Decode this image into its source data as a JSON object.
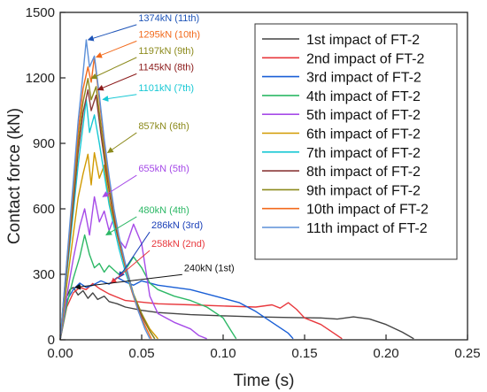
{
  "chart_data": {
    "type": "line",
    "title": "",
    "xlabel": "Time (s)",
    "ylabel": "Contact force (kN)",
    "xlim": [
      0,
      0.25
    ],
    "ylim": [
      0,
      1500
    ],
    "xticks": [
      "0.00",
      "0.05",
      "0.10",
      "0.15",
      "0.20",
      "0.25"
    ],
    "yticks": [
      "0",
      "300",
      "600",
      "900",
      "1200",
      "1500"
    ],
    "legend_position": "top-right",
    "grid": false,
    "series": [
      {
        "name": "1st impact of FT-2",
        "color": "#444444",
        "points": [
          [
            0,
            0
          ],
          [
            0.003,
            180
          ],
          [
            0.006,
            230
          ],
          [
            0.008,
            240
          ],
          [
            0.011,
            205
          ],
          [
            0.014,
            225
          ],
          [
            0.017,
            190
          ],
          [
            0.02,
            215
          ],
          [
            0.023,
            185
          ],
          [
            0.027,
            200
          ],
          [
            0.03,
            175
          ],
          [
            0.035,
            165
          ],
          [
            0.04,
            150
          ],
          [
            0.05,
            135
          ],
          [
            0.06,
            125
          ],
          [
            0.08,
            115
          ],
          [
            0.1,
            110
          ],
          [
            0.12,
            105
          ],
          [
            0.14,
            102
          ],
          [
            0.16,
            100
          ],
          [
            0.17,
            95
          ],
          [
            0.18,
            105
          ],
          [
            0.19,
            95
          ],
          [
            0.2,
            70
          ],
          [
            0.21,
            35
          ],
          [
            0.217,
            5
          ]
        ]
      },
      {
        "name": "2nd impact of FT-2",
        "color": "#e8383d",
        "points": [
          [
            0,
            0
          ],
          [
            0.004,
            150
          ],
          [
            0.008,
            215
          ],
          [
            0.012,
            240
          ],
          [
            0.016,
            230
          ],
          [
            0.02,
            258
          ],
          [
            0.024,
            235
          ],
          [
            0.03,
            210
          ],
          [
            0.04,
            180
          ],
          [
            0.06,
            165
          ],
          [
            0.08,
            160
          ],
          [
            0.1,
            155
          ],
          [
            0.12,
            150
          ],
          [
            0.13,
            160
          ],
          [
            0.135,
            145
          ],
          [
            0.14,
            170
          ],
          [
            0.145,
            140
          ],
          [
            0.15,
            100
          ],
          [
            0.16,
            70
          ],
          [
            0.168,
            30
          ],
          [
            0.173,
            5
          ]
        ]
      },
      {
        "name": "3rd impact of FT-2",
        "color": "#1a5fd6",
        "points": [
          [
            0,
            0
          ],
          [
            0.004,
            180
          ],
          [
            0.008,
            230
          ],
          [
            0.012,
            260
          ],
          [
            0.016,
            240
          ],
          [
            0.02,
            250
          ],
          [
            0.025,
            270
          ],
          [
            0.03,
            255
          ],
          [
            0.035,
            286
          ],
          [
            0.04,
            265
          ],
          [
            0.045,
            250
          ],
          [
            0.05,
            270
          ],
          [
            0.06,
            250
          ],
          [
            0.07,
            240
          ],
          [
            0.08,
            230
          ],
          [
            0.09,
            210
          ],
          [
            0.1,
            190
          ],
          [
            0.11,
            170
          ],
          [
            0.12,
            130
          ],
          [
            0.13,
            80
          ],
          [
            0.14,
            30
          ],
          [
            0.143,
            5
          ]
        ]
      },
      {
        "name": "4th impact of FT-2",
        "color": "#2db866",
        "points": [
          [
            0,
            0
          ],
          [
            0.004,
            160
          ],
          [
            0.008,
            280
          ],
          [
            0.012,
            380
          ],
          [
            0.015,
            480
          ],
          [
            0.018,
            390
          ],
          [
            0.021,
            330
          ],
          [
            0.024,
            350
          ],
          [
            0.027,
            310
          ],
          [
            0.03,
            340
          ],
          [
            0.033,
            320
          ],
          [
            0.036,
            300
          ],
          [
            0.04,
            320
          ],
          [
            0.045,
            380
          ],
          [
            0.05,
            330
          ],
          [
            0.055,
            260
          ],
          [
            0.06,
            230
          ],
          [
            0.07,
            200
          ],
          [
            0.08,
            180
          ],
          [
            0.09,
            150
          ],
          [
            0.1,
            100
          ],
          [
            0.105,
            40
          ],
          [
            0.108,
            5
          ]
        ]
      },
      {
        "name": "5th impact of FT-2",
        "color": "#a64be8",
        "points": [
          [
            0,
            0
          ],
          [
            0.004,
            200
          ],
          [
            0.008,
            370
          ],
          [
            0.012,
            520
          ],
          [
            0.015,
            600
          ],
          [
            0.018,
            480
          ],
          [
            0.021,
            655
          ],
          [
            0.024,
            540
          ],
          [
            0.027,
            590
          ],
          [
            0.03,
            500
          ],
          [
            0.033,
            560
          ],
          [
            0.036,
            460
          ],
          [
            0.04,
            420
          ],
          [
            0.045,
            530
          ],
          [
            0.05,
            440
          ],
          [
            0.055,
            200
          ],
          [
            0.06,
            120
          ],
          [
            0.07,
            80
          ],
          [
            0.08,
            50
          ],
          [
            0.085,
            20
          ],
          [
            0.09,
            5
          ]
        ]
      },
      {
        "name": "6th impact of FT-2",
        "color": "#d19a00",
        "points": [
          [
            0,
            0
          ],
          [
            0.004,
            250
          ],
          [
            0.008,
            480
          ],
          [
            0.011,
            650
          ],
          [
            0.014,
            760
          ],
          [
            0.017,
            850
          ],
          [
            0.019,
            710
          ],
          [
            0.021,
            857
          ],
          [
            0.024,
            740
          ],
          [
            0.027,
            800
          ],
          [
            0.03,
            640
          ],
          [
            0.033,
            540
          ],
          [
            0.036,
            450
          ],
          [
            0.04,
            330
          ],
          [
            0.045,
            200
          ],
          [
            0.05,
            120
          ],
          [
            0.055,
            50
          ],
          [
            0.06,
            5
          ]
        ]
      },
      {
        "name": "7th impact of FT-2",
        "color": "#18c8d4",
        "points": [
          [
            0,
            0
          ],
          [
            0.004,
            300
          ],
          [
            0.008,
            580
          ],
          [
            0.011,
            800
          ],
          [
            0.014,
            980
          ],
          [
            0.016,
            1101
          ],
          [
            0.018,
            950
          ],
          [
            0.021,
            1030
          ],
          [
            0.024,
            900
          ],
          [
            0.027,
            760
          ],
          [
            0.03,
            620
          ],
          [
            0.033,
            520
          ],
          [
            0.036,
            420
          ],
          [
            0.04,
            310
          ],
          [
            0.045,
            200
          ],
          [
            0.05,
            110
          ],
          [
            0.055,
            40
          ],
          [
            0.058,
            5
          ]
        ]
      },
      {
        "name": "8th impact of FT-2",
        "color": "#8b3a3a",
        "points": [
          [
            0,
            0
          ],
          [
            0.004,
            320
          ],
          [
            0.008,
            620
          ],
          [
            0.011,
            860
          ],
          [
            0.014,
            1040
          ],
          [
            0.017,
            1145
          ],
          [
            0.019,
            1050
          ],
          [
            0.022,
            1120
          ],
          [
            0.025,
            940
          ],
          [
            0.028,
            780
          ],
          [
            0.031,
            640
          ],
          [
            0.034,
            520
          ],
          [
            0.037,
            420
          ],
          [
            0.041,
            310
          ],
          [
            0.045,
            200
          ],
          [
            0.05,
            110
          ],
          [
            0.055,
            40
          ],
          [
            0.058,
            5
          ]
        ]
      },
      {
        "name": "9th impact of FT-2",
        "color": "#8c8a1c",
        "points": [
          [
            0,
            0
          ],
          [
            0.004,
            340
          ],
          [
            0.008,
            660
          ],
          [
            0.011,
            900
          ],
          [
            0.014,
            1090
          ],
          [
            0.017,
            1197
          ],
          [
            0.019,
            1100
          ],
          [
            0.022,
            1160
          ],
          [
            0.025,
            980
          ],
          [
            0.028,
            810
          ],
          [
            0.031,
            660
          ],
          [
            0.034,
            540
          ],
          [
            0.037,
            430
          ],
          [
            0.041,
            320
          ],
          [
            0.045,
            210
          ],
          [
            0.05,
            120
          ],
          [
            0.055,
            40
          ],
          [
            0.058,
            5
          ]
        ]
      },
      {
        "name": "10th impact of FT-2",
        "color": "#f26a1c",
        "points": [
          [
            0,
            0
          ],
          [
            0.004,
            350
          ],
          [
            0.008,
            690
          ],
          [
            0.011,
            950
          ],
          [
            0.014,
            1150
          ],
          [
            0.017,
            1250
          ],
          [
            0.019,
            1180
          ],
          [
            0.021,
            1295
          ],
          [
            0.024,
            1100
          ],
          [
            0.027,
            900
          ],
          [
            0.03,
            730
          ],
          [
            0.033,
            590
          ],
          [
            0.036,
            470
          ],
          [
            0.04,
            340
          ],
          [
            0.044,
            220
          ],
          [
            0.048,
            130
          ],
          [
            0.053,
            50
          ],
          [
            0.056,
            5
          ]
        ]
      },
      {
        "name": "11th impact of FT-2",
        "color": "#5b8fd8",
        "points": [
          [
            0,
            0
          ],
          [
            0.004,
            360
          ],
          [
            0.008,
            720
          ],
          [
            0.011,
            1000
          ],
          [
            0.014,
            1220
          ],
          [
            0.016,
            1374
          ],
          [
            0.018,
            1250
          ],
          [
            0.021,
            1300
          ],
          [
            0.024,
            1120
          ],
          [
            0.027,
            920
          ],
          [
            0.03,
            750
          ],
          [
            0.033,
            600
          ],
          [
            0.036,
            480
          ],
          [
            0.04,
            350
          ],
          [
            0.044,
            230
          ],
          [
            0.048,
            130
          ],
          [
            0.052,
            50
          ],
          [
            0.055,
            5
          ]
        ]
      }
    ],
    "annotations": [
      {
        "label": "1374kN (11th)",
        "color": "#1f55b8",
        "x": 0.016,
        "y": 1374,
        "tx": 0.048,
        "ty": 1460
      },
      {
        "label": "1295kN (10th)",
        "color": "#f26a1c",
        "x": 0.021,
        "y": 1295,
        "tx": 0.048,
        "ty": 1385
      },
      {
        "label": "1197kN (9th)",
        "color": "#8c8a1c",
        "x": 0.018,
        "y": 1197,
        "tx": 0.048,
        "ty": 1310
      },
      {
        "label": "1145kN (8th)",
        "color": "#8b1a1a",
        "x": 0.022,
        "y": 1145,
        "tx": 0.048,
        "ty": 1235
      },
      {
        "label": "1101kN (7th)",
        "color": "#18c8d4",
        "x": 0.025,
        "y": 1101,
        "tx": 0.048,
        "ty": 1140
      },
      {
        "label": "857kN (6th)",
        "color": "#8c8a1c",
        "x": 0.028,
        "y": 857,
        "tx": 0.048,
        "ty": 965
      },
      {
        "label": "655kN (5th)",
        "color": "#a64be8",
        "x": 0.025,
        "y": 655,
        "tx": 0.048,
        "ty": 770
      },
      {
        "label": "480kN (4th)",
        "color": "#2db866",
        "x": 0.027,
        "y": 480,
        "tx": 0.048,
        "ty": 580
      },
      {
        "label": "286kN (3rd)",
        "color": "#1a3fb8",
        "x": 0.035,
        "y": 286,
        "tx": 0.056,
        "ty": 510
      },
      {
        "label": "258kN (2nd)",
        "color": "#e8383d",
        "x": 0.03,
        "y": 258,
        "tx": 0.056,
        "ty": 425
      },
      {
        "label": "240kN (1st)",
        "color": "#111111",
        "x": 0.008,
        "y": 240,
        "tx": 0.076,
        "ty": 315
      }
    ]
  }
}
